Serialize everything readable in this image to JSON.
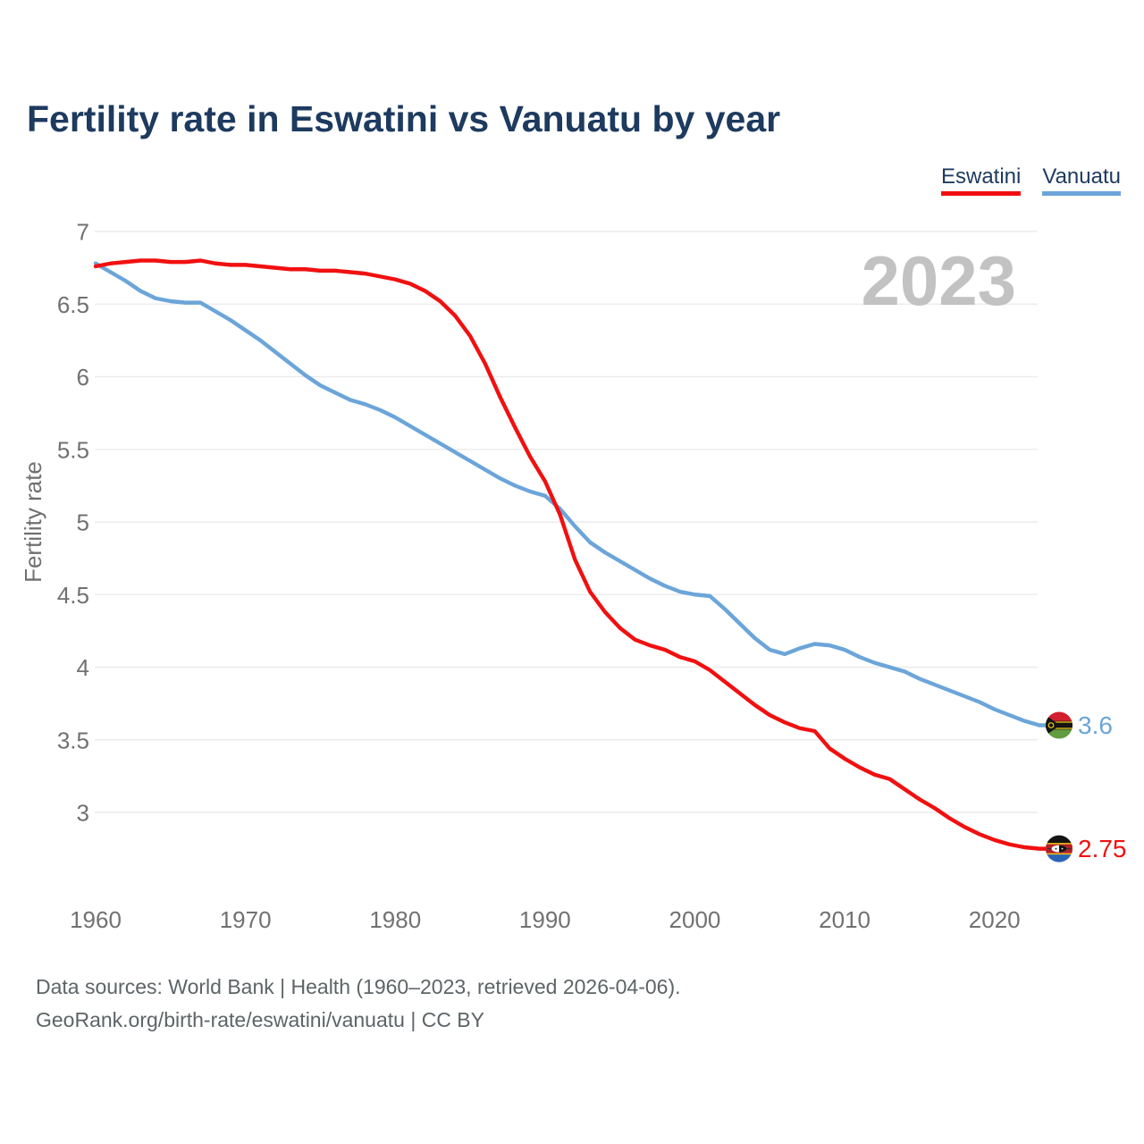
{
  "header": {
    "title": "Fertility rate in Eswatini vs Vanuatu by year"
  },
  "legend": {
    "items": [
      {
        "label": "Eswatini",
        "color": "#f11010"
      },
      {
        "label": "Vanuatu",
        "color": "#6ba5d9"
      }
    ]
  },
  "watermark": "2023",
  "footer": {
    "line1": "Data sources: World Bank | Health (1960–2023, retrieved 2026-04-06).",
    "line2": "GeoRank.org/birth-rate/eswatini/vanuatu | CC BY"
  },
  "chart_data": {
    "type": "line",
    "title": "Fertility rate in Eswatini vs Vanuatu by year",
    "xlabel": "",
    "ylabel": "Fertility rate",
    "xlim": [
      1960,
      2023
    ],
    "ylim": [
      2.6,
      7.05
    ],
    "grid": true,
    "legend_position": "top-right",
    "yticks": [
      "7",
      "6.5",
      "6",
      "5.5",
      "5",
      "4.5",
      "4",
      "3.5",
      "3"
    ],
    "xticks": [
      "1960",
      "1970",
      "1980",
      "1990",
      "2000",
      "2010",
      "2020"
    ],
    "x": [
      1960,
      1961,
      1962,
      1963,
      1964,
      1965,
      1966,
      1967,
      1968,
      1969,
      1970,
      1971,
      1972,
      1973,
      1974,
      1975,
      1976,
      1977,
      1978,
      1979,
      1980,
      1981,
      1982,
      1983,
      1984,
      1985,
      1986,
      1987,
      1988,
      1989,
      1990,
      1991,
      1992,
      1993,
      1994,
      1995,
      1996,
      1997,
      1998,
      1999,
      2000,
      2001,
      2002,
      2003,
      2004,
      2005,
      2006,
      2007,
      2008,
      2009,
      2010,
      2011,
      2012,
      2013,
      2014,
      2015,
      2016,
      2017,
      2018,
      2019,
      2020,
      2021,
      2022,
      2023
    ],
    "series": [
      {
        "name": "Eswatini",
        "color": "#f11010",
        "end_label": "2.75",
        "end_value": 2.75,
        "values": [
          6.76,
          6.78,
          6.79,
          6.8,
          6.8,
          6.79,
          6.79,
          6.8,
          6.78,
          6.77,
          6.77,
          6.76,
          6.75,
          6.74,
          6.74,
          6.73,
          6.73,
          6.72,
          6.71,
          6.69,
          6.67,
          6.64,
          6.59,
          6.52,
          6.42,
          6.28,
          6.09,
          5.86,
          5.65,
          5.45,
          5.28,
          5.05,
          4.74,
          4.52,
          4.38,
          4.27,
          4.19,
          4.15,
          4.12,
          4.07,
          4.04,
          3.98,
          3.9,
          3.82,
          3.74,
          3.67,
          3.62,
          3.58,
          3.56,
          3.44,
          3.37,
          3.31,
          3.26,
          3.23,
          3.16,
          3.09,
          3.03,
          2.96,
          2.9,
          2.85,
          2.81,
          2.78,
          2.76,
          2.75
        ]
      },
      {
        "name": "Vanuatu",
        "color": "#6ba5d9",
        "end_label": "3.6",
        "end_value": 3.6,
        "values": [
          6.78,
          6.72,
          6.66,
          6.59,
          6.54,
          6.52,
          6.51,
          6.51,
          6.45,
          6.39,
          6.32,
          6.25,
          6.17,
          6.09,
          6.01,
          5.94,
          5.89,
          5.84,
          5.81,
          5.77,
          5.72,
          5.66,
          5.6,
          5.54,
          5.48,
          5.42,
          5.36,
          5.3,
          5.25,
          5.21,
          5.18,
          5.09,
          4.97,
          4.86,
          4.79,
          4.73,
          4.67,
          4.61,
          4.56,
          4.52,
          4.5,
          4.49,
          4.4,
          4.3,
          4.2,
          4.12,
          4.09,
          4.13,
          4.16,
          4.15,
          4.12,
          4.07,
          4.03,
          4.0,
          3.97,
          3.92,
          3.88,
          3.84,
          3.8,
          3.76,
          3.71,
          3.67,
          3.63,
          3.6
        ]
      }
    ]
  }
}
